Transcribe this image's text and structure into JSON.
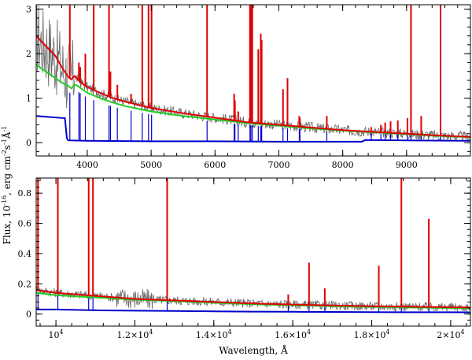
{
  "figure": {
    "ylabel_main": "Flux, 10",
    "ylabel_exp": "-16",
    "ylabel_units": "erg cm",
    "ylabel_units_exp1": "-2",
    "ylabel_units_s": "s",
    "ylabel_units_exp2": "-1",
    "ylabel_units_A": "Å",
    "ylabel_units_exp3": "-1",
    "xlabel": "Wavelength, Å"
  },
  "colors": {
    "observed": "#666666",
    "model_total": "#e00000",
    "model_continuum": "#22cc22",
    "component": "#0000cc"
  },
  "chart_data": [
    {
      "type": "line",
      "title": "",
      "xlabel": "",
      "ylabel": "",
      "xlim": [
        3200,
        10000
      ],
      "ylim": [
        -0.3,
        3.1
      ],
      "xticks": [
        4000,
        5000,
        6000,
        7000,
        8000,
        9000
      ],
      "xtick_labels": [
        "4000",
        "5000",
        "6000",
        "7000",
        "8000",
        "9000"
      ],
      "yticks": [
        0,
        1,
        2,
        3
      ],
      "ytick_labels": [
        "0",
        "1",
        "2",
        "3"
      ],
      "series": [
        {
          "name": "green continuum",
          "color": "#22cc22",
          "x": [
            3200,
            3400,
            3600,
            3700,
            3750,
            3800,
            3850,
            3900,
            4000,
            4200,
            4400,
            4600,
            4800,
            5000,
            5500,
            6000,
            6500,
            7000,
            7500,
            8000,
            8500,
            9000,
            9500,
            10000
          ],
          "y": [
            1.75,
            1.55,
            1.35,
            1.28,
            1.22,
            1.3,
            1.28,
            1.22,
            1.12,
            1.0,
            0.9,
            0.82,
            0.76,
            0.7,
            0.6,
            0.52,
            0.44,
            0.38,
            0.32,
            0.27,
            0.23,
            0.19,
            0.15,
            0.12
          ]
        },
        {
          "name": "red model",
          "color": "#e00000",
          "x": [
            3200,
            3300,
            3400,
            3500,
            3600,
            3700,
            3750,
            3800,
            3900,
            4000,
            4200,
            4400,
            4600,
            4800,
            5000,
            5500,
            6000,
            6500,
            7000,
            7500,
            8000,
            8500,
            9000,
            9500,
            10000
          ],
          "y": [
            2.4,
            2.25,
            2.1,
            1.95,
            1.7,
            1.48,
            1.42,
            1.5,
            1.35,
            1.25,
            1.12,
            1.0,
            0.92,
            0.85,
            0.78,
            0.66,
            0.56,
            0.46,
            0.4,
            0.34,
            0.28,
            0.24,
            0.2,
            0.16,
            0.13
          ]
        },
        {
          "name": "blue component",
          "color": "#0000cc",
          "x": [
            3200,
            3650,
            3680,
            3700,
            4000,
            5000,
            6000,
            7000,
            8000,
            8300,
            8350,
            9000,
            10000
          ],
          "y": [
            0.6,
            0.55,
            0.1,
            0.05,
            0.04,
            0.03,
            0.03,
            0.02,
            0.02,
            0.02,
            0.06,
            0.05,
            0.04
          ]
        }
      ],
      "red_emission_lines": [
        {
          "x": 3727,
          "peak": 3.1
        },
        {
          "x": 3869,
          "peak": 1.8
        },
        {
          "x": 3889,
          "peak": 1.7
        },
        {
          "x": 3970,
          "peak": 2.0
        },
        {
          "x": 4101,
          "peak": 3.1
        },
        {
          "x": 4340,
          "peak": 3.1
        },
        {
          "x": 4363,
          "peak": 1.6
        },
        {
          "x": 4471,
          "peak": 1.3
        },
        {
          "x": 4686,
          "peak": 1.1
        },
        {
          "x": 4861,
          "peak": 3.1
        },
        {
          "x": 4959,
          "peak": 3.1
        },
        {
          "x": 5007,
          "peak": 3.1
        },
        {
          "x": 5876,
          "peak": 3.1
        },
        {
          "x": 6300,
          "peak": 1.1
        },
        {
          "x": 6312,
          "peak": 0.95
        },
        {
          "x": 6364,
          "peak": 0.7
        },
        {
          "x": 6548,
          "peak": 3.1
        },
        {
          "x": 6563,
          "peak": 3.1
        },
        {
          "x": 6584,
          "peak": 3.1
        },
        {
          "x": 6678,
          "peak": 2.1
        },
        {
          "x": 6717,
          "peak": 2.45
        },
        {
          "x": 6731,
          "peak": 2.3
        },
        {
          "x": 7065,
          "peak": 1.2
        },
        {
          "x": 7136,
          "peak": 1.45
        },
        {
          "x": 7320,
          "peak": 0.6
        },
        {
          "x": 7330,
          "peak": 0.55
        },
        {
          "x": 7751,
          "peak": 0.6
        },
        {
          "x": 8446,
          "peak": 0.35
        },
        {
          "x": 8598,
          "peak": 0.4
        },
        {
          "x": 8665,
          "peak": 0.45
        },
        {
          "x": 8750,
          "peak": 0.48
        },
        {
          "x": 8863,
          "peak": 0.5
        },
        {
          "x": 9014,
          "peak": 0.55
        },
        {
          "x": 9069,
          "peak": 3.1
        },
        {
          "x": 9229,
          "peak": 0.6
        },
        {
          "x": 9532,
          "peak": 3.1
        }
      ]
    },
    {
      "type": "line",
      "title": "",
      "xlabel": "Wavelength, Å",
      "ylabel": "",
      "xlim": [
        9500,
        20500
      ],
      "ylim": [
        -0.08,
        0.9
      ],
      "xticks": [
        10000,
        12000,
        14000,
        16000,
        18000,
        20000
      ],
      "xtick_labels": [
        "10",
        "1.2×10",
        "1.4×10",
        "1.6×10",
        "1.8×10",
        "2×10"
      ],
      "xtick_exp": "4",
      "yticks": [
        0,
        0.2,
        0.4,
        0.6,
        0.8
      ],
      "ytick_labels": [
        "0",
        "0.2",
        "0.4",
        "0.6",
        "0.8"
      ],
      "series": [
        {
          "name": "green continuum",
          "color": "#22cc22",
          "x": [
            9500,
            10000,
            11000,
            12000,
            13000,
            14000,
            15000,
            16000,
            17000,
            18000,
            19000,
            20000,
            20500
          ],
          "y": [
            0.14,
            0.125,
            0.11,
            0.095,
            0.085,
            0.075,
            0.065,
            0.058,
            0.052,
            0.047,
            0.043,
            0.04,
            0.038
          ]
        },
        {
          "name": "red model",
          "color": "#e00000",
          "x": [
            9500,
            10000,
            11000,
            12000,
            13000,
            14000,
            15000,
            16000,
            17000,
            18000,
            19000,
            20000,
            20500
          ],
          "y": [
            0.16,
            0.14,
            0.12,
            0.1,
            0.09,
            0.08,
            0.07,
            0.063,
            0.057,
            0.052,
            0.048,
            0.045,
            0.043
          ]
        },
        {
          "name": "blue component",
          "color": "#0000cc",
          "x": [
            9500,
            10000,
            11000,
            12000,
            13000,
            14000,
            15000,
            16000,
            17000,
            18000,
            19000,
            20000,
            20500
          ],
          "y": [
            0.03,
            0.03,
            0.025,
            0.022,
            0.02,
            0.018,
            0.016,
            0.015,
            0.014,
            0.013,
            0.012,
            0.012,
            0.011
          ]
        }
      ],
      "red_emission_lines": [
        {
          "x": 9546,
          "peak": 0.9
        },
        {
          "x": 10049,
          "peak": 0.9
        },
        {
          "x": 10830,
          "peak": 0.9
        },
        {
          "x": 10938,
          "peak": 0.9
        },
        {
          "x": 12818,
          "peak": 0.9
        },
        {
          "x": 15885,
          "peak": 0.13
        },
        {
          "x": 16412,
          "peak": 0.34
        },
        {
          "x": 16811,
          "peak": 0.17
        },
        {
          "x": 18179,
          "peak": 0.32
        },
        {
          "x": 18751,
          "peak": 0.9
        },
        {
          "x": 19446,
          "peak": 0.63
        }
      ]
    }
  ]
}
